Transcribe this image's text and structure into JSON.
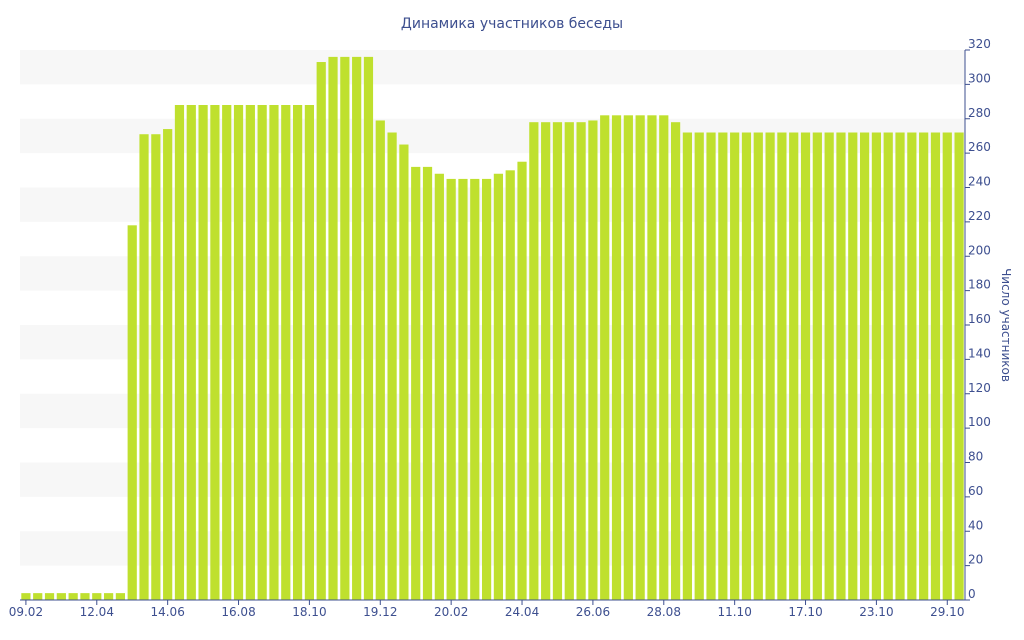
{
  "chart_data": {
    "type": "bar",
    "title": "Динамика участников беседы",
    "xlabel": "",
    "ylabel": "Число участников",
    "ylim": [
      0,
      320
    ],
    "y_ticks": [
      0,
      20,
      40,
      60,
      80,
      100,
      120,
      140,
      160,
      180,
      200,
      220,
      240,
      260,
      280,
      300,
      320
    ],
    "y_axis_side": "right",
    "grid": "alternating horizontal bands",
    "x_tick_labels": [
      {
        "label": "09.02",
        "index": 0
      },
      {
        "label": "12.04",
        "index": 6
      },
      {
        "label": "14.06",
        "index": 12
      },
      {
        "label": "16.08",
        "index": 18
      },
      {
        "label": "18.10",
        "index": 24
      },
      {
        "label": "19.12",
        "index": 30
      },
      {
        "label": "20.02",
        "index": 36
      },
      {
        "label": "24.04",
        "index": 42
      },
      {
        "label": "26.06",
        "index": 48
      },
      {
        "label": "28.08",
        "index": 54
      },
      {
        "label": "11.10",
        "index": 60
      },
      {
        "label": "17.10",
        "index": 66
      },
      {
        "label": "23.10",
        "index": 72
      },
      {
        "label": "29.10",
        "index": 78
      }
    ],
    "values": [
      4,
      4,
      4,
      4,
      4,
      4,
      4,
      4,
      4,
      218,
      271,
      271,
      274,
      288,
      288,
      288,
      288,
      288,
      288,
      288,
      288,
      288,
      288,
      288,
      288,
      313,
      316,
      316,
      316,
      316,
      279,
      272,
      265,
      252,
      252,
      248,
      245,
      245,
      245,
      245,
      248,
      250,
      255,
      278,
      278,
      278,
      278,
      278,
      279,
      282,
      282,
      282,
      282,
      282,
      282,
      278,
      272,
      272,
      272,
      272,
      272,
      272,
      272,
      272,
      272,
      272,
      272,
      272,
      272,
      272,
      272,
      272,
      272,
      272,
      272,
      272,
      272,
      272,
      272,
      272
    ],
    "colors": {
      "bar": "#bfe02e",
      "text": "#3d4f8f",
      "band": "#f7f7f7",
      "axis": "#3d4f8f"
    }
  }
}
